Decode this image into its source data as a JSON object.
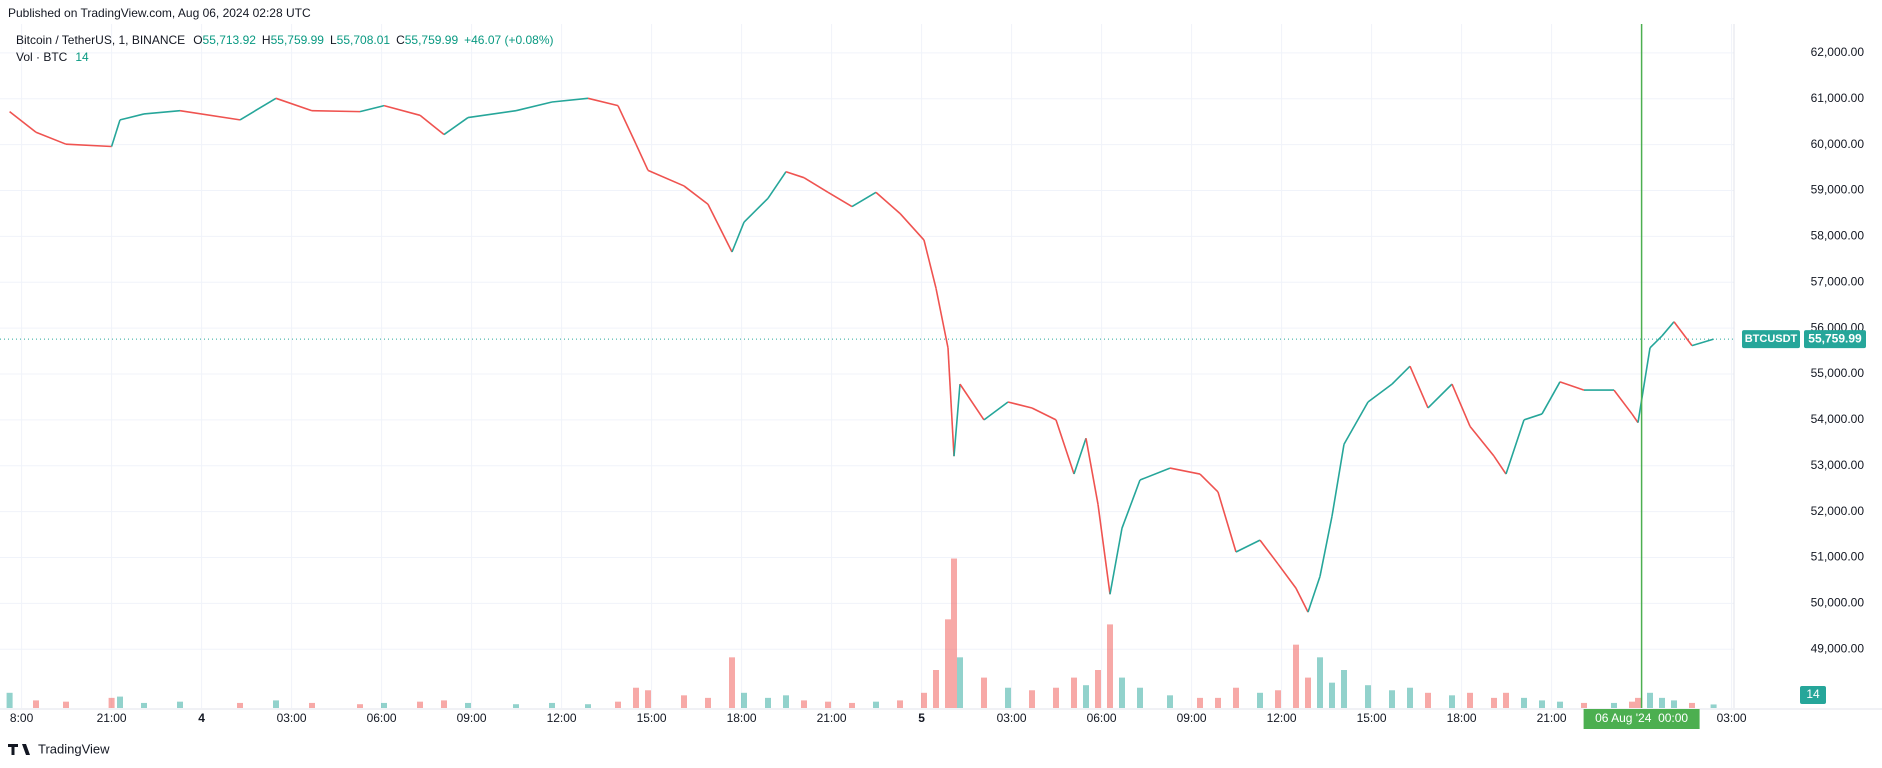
{
  "published": "Published on TradingView.com, Aug 06, 2024 02:28 UTC",
  "brand": "TradingView",
  "chart_data": {
    "type": "line",
    "symbol": "Bitcoin / TetherUS, 1, BINANCE",
    "ohlc": [
      {
        "label": "O",
        "value": "55,713.92"
      },
      {
        "label": "H",
        "value": "55,759.99"
      },
      {
        "label": "L",
        "value": "55,708.01"
      },
      {
        "label": "C",
        "value": "55,759.99"
      }
    ],
    "change": "+46.07 (+0.08%)",
    "x": [
      17.6,
      18.48,
      19.48,
      21,
      21.28,
      22.08,
      23.28,
      25.28,
      26.48,
      27.68,
      29.28,
      30.08,
      31.28,
      32.08,
      32.88,
      34.48,
      35.68,
      36.88,
      37.88,
      38.48,
      38.88,
      40.08,
      40.88,
      41.68,
      42.08,
      42.88,
      43.48,
      44.08,
      44.88,
      45.68,
      46.48,
      47.28,
      48.08,
      48.48,
      48.88,
      49.08,
      49.28,
      50.08,
      50.88,
      51.68,
      52.48,
      53.08,
      53.48,
      53.88,
      54.28,
      54.68,
      55.28,
      56.28,
      57.28,
      57.88,
      58.48,
      59.28,
      59.88,
      60.48,
      60.88,
      61.28,
      61.68,
      62.08,
      62.88,
      63.68,
      64.28,
      64.88,
      65.68,
      66.28,
      67.08,
      67.48,
      68.08,
      68.68,
      69.28,
      70.08,
      71.08,
      71.68,
      71.88,
      72.28,
      72.68,
      73.08,
      73.68,
      74.4
    ],
    "series": [
      {
        "name": "Bitcoin / TetherUS",
        "color": "#26a69a",
        "down_color": "#ef5350",
        "values": [
          60720,
          60270,
          60010,
          59960,
          60540,
          60670,
          60740,
          60540,
          61010,
          60740,
          60720,
          60850,
          60640,
          60220,
          60590,
          60740,
          60930,
          61010,
          60850,
          60010,
          59440,
          59100,
          58700,
          57660,
          58310,
          58830,
          59410,
          59280,
          58960,
          58650,
          58960,
          58500,
          57920,
          56870,
          55570,
          53210,
          54780,
          54000,
          54390,
          54260,
          54000,
          52820,
          53600,
          52160,
          50200,
          51640,
          52690,
          52950,
          52820,
          52430,
          51120,
          51380,
          50860,
          50330,
          49810,
          50590,
          51900,
          53470,
          54390,
          54780,
          55170,
          54260,
          54780,
          53860,
          53210,
          52820,
          54000,
          54130,
          54830,
          54650,
          54650,
          54130,
          53940,
          55570,
          55830,
          56140,
          55620,
          55759.99
        ]
      },
      {
        "name": "Vol · BTC",
        "axis": "y2",
        "color": "#26a69a",
        "down_color": "#ef5350",
        "values": [
          60,
          30,
          25,
          40,
          45,
          20,
          25,
          20,
          30,
          20,
          15,
          20,
          25,
          30,
          20,
          15,
          20,
          15,
          25,
          80,
          70,
          50,
          40,
          200,
          60,
          40,
          50,
          30,
          25,
          20,
          25,
          30,
          60,
          150,
          350,
          590,
          200,
          120,
          80,
          70,
          80,
          120,
          90,
          150,
          330,
          120,
          80,
          50,
          40,
          40,
          80,
          60,
          70,
          250,
          120,
          200,
          100,
          150,
          90,
          70,
          80,
          60,
          50,
          60,
          40,
          60,
          40,
          30,
          25,
          20,
          20,
          25,
          40,
          60,
          40,
          30,
          20,
          14
        ]
      }
    ],
    "xlim": [
      17.28,
      75.08
    ],
    "xticks": [
      {
        "value": 18,
        "label": "8:00"
      },
      {
        "value": 21,
        "label": "21:00"
      },
      {
        "value": 24,
        "label": "4"
      },
      {
        "value": 27,
        "label": "03:00"
      },
      {
        "value": 30,
        "label": "06:00"
      },
      {
        "value": 33,
        "label": "09:00"
      },
      {
        "value": 36,
        "label": "12:00"
      },
      {
        "value": 39,
        "label": "15:00"
      },
      {
        "value": 42,
        "label": "18:00"
      },
      {
        "value": 45,
        "label": "21:00"
      },
      {
        "value": 48,
        "label": "5"
      },
      {
        "value": 51,
        "label": "03:00"
      },
      {
        "value": 54,
        "label": "06:00"
      },
      {
        "value": 57,
        "label": "09:00"
      },
      {
        "value": 60,
        "label": "12:00"
      },
      {
        "value": 63,
        "label": "15:00"
      },
      {
        "value": 66,
        "label": "18:00"
      },
      {
        "value": 69,
        "label": "21:00"
      },
      {
        "value": 75,
        "label": "03:00"
      }
    ],
    "ylim": [
      47720,
      62630
    ],
    "yticks": [
      {
        "value": 49000,
        "label": "49,000.00"
      },
      {
        "value": 50000,
        "label": "50,000.00"
      },
      {
        "value": 51000,
        "label": "51,000.00"
      },
      {
        "value": 52000,
        "label": "52,000.00"
      },
      {
        "value": 53000,
        "label": "53,000.00"
      },
      {
        "value": 54000,
        "label": "54,000.00"
      },
      {
        "value": 55000,
        "label": "55,000.00"
      },
      {
        "value": 56000,
        "label": "56,000.00"
      },
      {
        "value": 57000,
        "label": "57,000.00"
      },
      {
        "value": 58000,
        "label": "58,000.00"
      },
      {
        "value": 59000,
        "label": "59,000.00"
      },
      {
        "value": 60000,
        "label": "60,000.00"
      },
      {
        "value": 61000,
        "label": "61,000.00"
      },
      {
        "value": 62000,
        "label": "62,000.00"
      }
    ],
    "y2lim": [
      0,
      2700
    ],
    "grid": true,
    "last_price": {
      "tag": "BTCUSDT",
      "value": 55759.99,
      "label": "55,759.99"
    },
    "crosshair": {
      "x": 72,
      "label": "06 Aug '24  00:00",
      "color": "#4caf50"
    }
  }
}
